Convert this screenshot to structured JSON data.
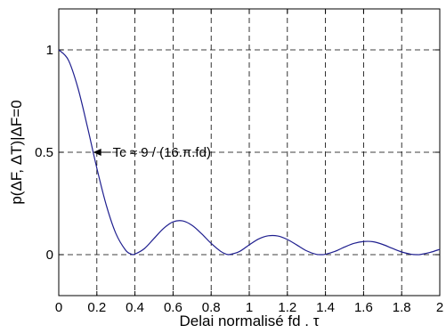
{
  "chart_data": {
    "type": "line",
    "title": "",
    "xlabel": "Delai normalisé fd . τ",
    "ylabel": "p(ΔF, ΔT)|ΔF=0",
    "xlim": [
      0,
      2
    ],
    "ylim": [
      -0.2,
      1.2
    ],
    "xticks": [
      "0",
      "0.2",
      "0.4",
      "0.6",
      "0.8",
      "1",
      "1.2",
      "1.4",
      "1.6",
      "1.8",
      "2"
    ],
    "yticks": [
      "0",
      "0.5",
      "1"
    ],
    "grid": true,
    "legend": "none",
    "colors": {
      "line": "#1f1f8f",
      "grid": "#000000",
      "axis": "#000000"
    },
    "series": [
      {
        "x": [
          0,
          0.05,
          0.1,
          0.15,
          0.2,
          0.25,
          0.3,
          0.35,
          0.38,
          0.4,
          0.45,
          0.5,
          0.55,
          0.6,
          0.65,
          0.7,
          0.75,
          0.8,
          0.85,
          0.88,
          0.9,
          0.95,
          1.0,
          1.05,
          1.1,
          1.15,
          1.2,
          1.25,
          1.3,
          1.35,
          1.38,
          1.4,
          1.45,
          1.5,
          1.55,
          1.6,
          1.65,
          1.7,
          1.75,
          1.8,
          1.85,
          1.88,
          1.9,
          1.95,
          2.0
        ],
        "values": [
          1.0,
          0.951,
          0.816,
          0.626,
          0.422,
          0.24,
          0.103,
          0.023,
          0.003,
          0.003,
          0.03,
          0.079,
          0.128,
          0.16,
          0.165,
          0.143,
          0.102,
          0.055,
          0.016,
          0.002,
          0.001,
          0.016,
          0.048,
          0.077,
          0.092,
          0.091,
          0.074,
          0.047,
          0.019,
          0.002,
          0.0,
          0.002,
          0.016,
          0.037,
          0.055,
          0.064,
          0.063,
          0.05,
          0.031,
          0.013,
          0.002,
          0.0,
          0.001,
          0.011,
          0.026
        ]
      }
    ],
    "annotations": [
      {
        "text": "Tc ≈ 9 / (16.π.fd)",
        "x": 0.19,
        "y": 0.5
      }
    ]
  }
}
